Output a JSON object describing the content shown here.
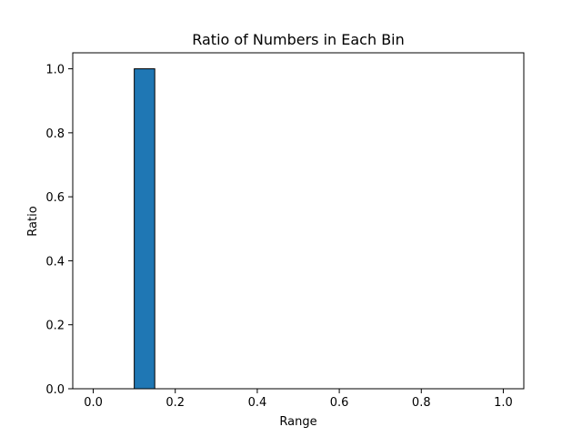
{
  "chart_data": {
    "type": "bar",
    "title": "Ratio of Numbers in Each Bin",
    "xlabel": "Range",
    "ylabel": "Ratio",
    "xlim": [
      -0.05,
      1.05
    ],
    "ylim": [
      0,
      1.05
    ],
    "x_ticks": [
      0.0,
      0.2,
      0.4,
      0.6,
      0.8,
      1.0
    ],
    "x_tick_labels": [
      "0.0",
      "0.2",
      "0.4",
      "0.6",
      "0.8",
      "1.0"
    ],
    "y_ticks": [
      0.0,
      0.2,
      0.4,
      0.6,
      0.8,
      1.0
    ],
    "y_tick_labels": [
      "0.0",
      "0.2",
      "0.4",
      "0.6",
      "0.8",
      "1.0"
    ],
    "bins": [
      {
        "start": 0.1,
        "end": 0.15,
        "value": 1.0
      }
    ],
    "grid": false,
    "bar_color": "#1f77b4",
    "edge_color": "#000000"
  }
}
